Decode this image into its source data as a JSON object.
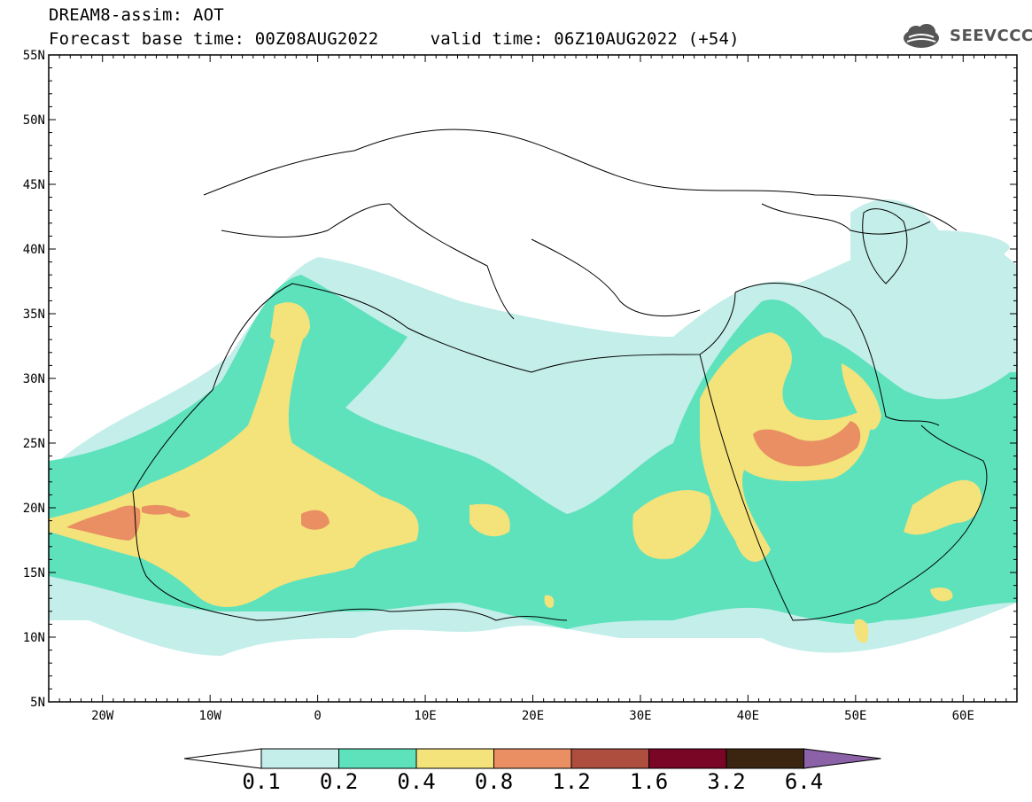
{
  "header": {
    "title_line1": "DREAM8-assim: AOT",
    "title_line2": "Forecast base time: 00Z08AUG2022     valid time: 06Z10AUG2022 (+54)",
    "logo_text": "SEEVCCC",
    "logo_icon": "cloud-icon"
  },
  "map": {
    "lon_range": [
      -25,
      65
    ],
    "lat_range": [
      5,
      55
    ],
    "lat_ticks": [
      "55N",
      "50N",
      "45N",
      "40N",
      "35N",
      "30N",
      "25N",
      "20N",
      "15N",
      "10N",
      "5N"
    ],
    "lon_ticks": [
      "20W",
      "10W",
      "0",
      "10E",
      "20E",
      "30E",
      "40E",
      "50E",
      "60E"
    ]
  },
  "colorbar": {
    "labels": [
      "0.1",
      "0.2",
      "0.4",
      "0.8",
      "1.2",
      "1.6",
      "3.2",
      "6.4"
    ],
    "colors": [
      "#ffffff",
      "#c4eeea",
      "#5ee2bc",
      "#f4e27a",
      "#e98f63",
      "#ad4e3e",
      "#7a0626",
      "#3b2510",
      "#8b62a8"
    ]
  }
}
